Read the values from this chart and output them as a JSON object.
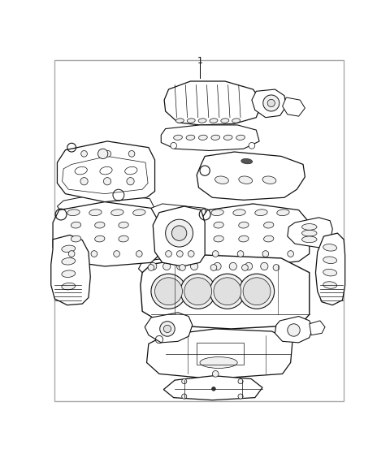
{
  "fig_width": 4.8,
  "fig_height": 5.64,
  "dpi": 100,
  "bg_color": "#ffffff",
  "border_color": "#888888",
  "fill_light": "#ffffff",
  "fill_mid": "#f0f0f0",
  "fill_dark": "#e0e0e0",
  "line_color": "#111111",
  "label": "1"
}
